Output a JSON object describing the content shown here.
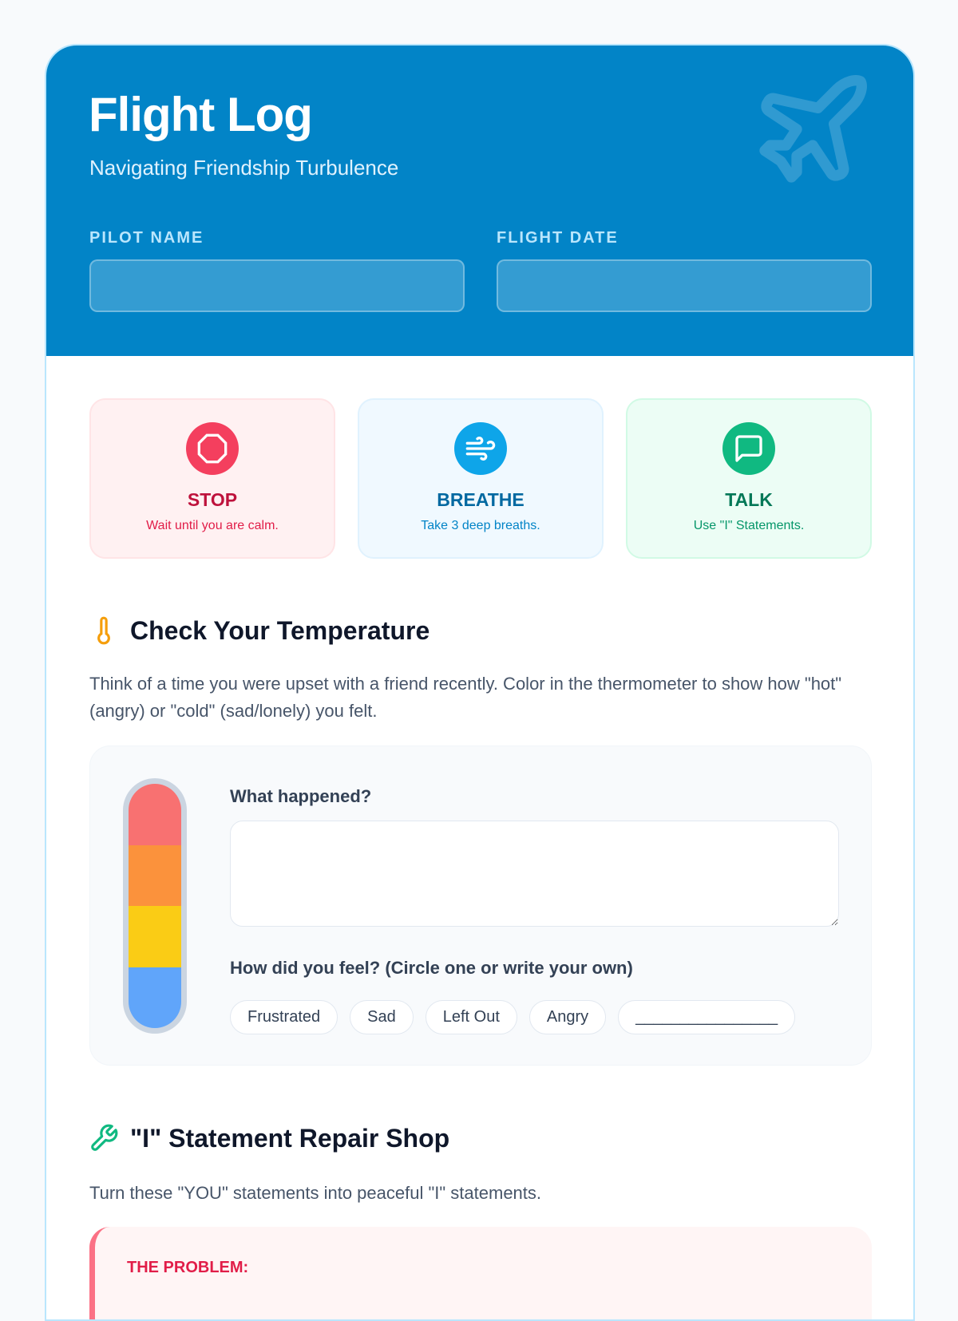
{
  "header": {
    "title": "Flight Log",
    "subtitle": "Navigating Friendship Turbulence",
    "pilot_label": "PILOT NAME",
    "pilot_value": "",
    "date_label": "FLIGHT DATE",
    "date_value": ""
  },
  "steps": [
    {
      "title": "STOP",
      "desc": "Wait until you are calm.",
      "icon": "octagon-icon",
      "color": "#f43f5e"
    },
    {
      "title": "BREATHE",
      "desc": "Take 3 deep breaths.",
      "icon": "wind-icon",
      "color": "#0ea5e9"
    },
    {
      "title": "TALK",
      "desc": "Use \"I\" Statements.",
      "icon": "message-square-icon",
      "color": "#10b981"
    }
  ],
  "temperature": {
    "heading": "Check Your Temperature",
    "intro": "Think of a time you were upset with a friend recently. Color in the thermometer to show how \"hot\" (angry) or \"cold\" (sad/lonely) you felt.",
    "thermometer_colors": [
      "#f87171",
      "#fb923c",
      "#facc15",
      "#60a5fa"
    ],
    "what_label": "What happened?",
    "what_value": "",
    "feel_label": "How did you feel? (Circle one or write your own)",
    "feelings": [
      "Frustrated",
      "Sad",
      "Left Out",
      "Angry",
      "________________"
    ]
  },
  "repair": {
    "heading": "\"I\" Statement Repair Shop",
    "intro": "Turn these \"YOU\" statements into peaceful \"I\" statements.",
    "problem_label": "THE PROBLEM:"
  }
}
